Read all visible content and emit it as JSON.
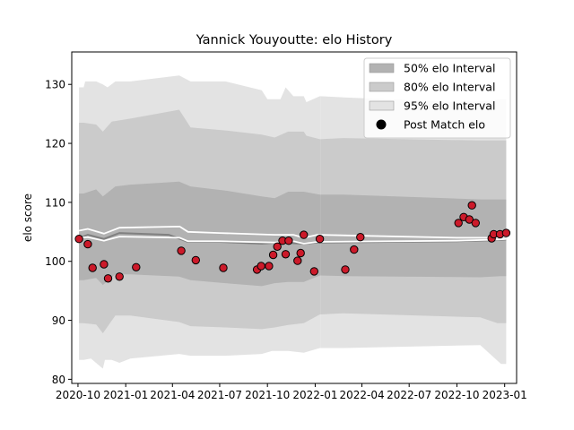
{
  "chart_data": {
    "type": "line",
    "title": "Yannick Youyoutte: elo History",
    "xlabel": "",
    "ylabel": "elo score",
    "xlim": [
      "2020-09-19",
      "2023-01-24"
    ],
    "ylim": [
      79.3,
      135.5
    ],
    "x_ticks": [
      "2020-10",
      "2021-01",
      "2021-04",
      "2021-07",
      "2021-10",
      "2022-01",
      "2022-04",
      "2022-07",
      "2022-10",
      "2023-01"
    ],
    "y_ticks": [
      80,
      90,
      100,
      110,
      120,
      130
    ],
    "grid": false,
    "legend_position": "top-right",
    "legend": [
      {
        "label": "50% elo Interval",
        "kind": "band",
        "color": "#b2b2b2"
      },
      {
        "label": "80% elo Interval",
        "kind": "band",
        "color": "#cbcbcb"
      },
      {
        "label": "95% elo Interval",
        "kind": "band",
        "color": "#e3e3e3"
      },
      {
        "label": "Post Match elo",
        "kind": "marker",
        "color": "#000000"
      }
    ],
    "bands": [
      {
        "name": "95% elo Interval",
        "color": "#e3e3e3",
        "upper": [
          [
            "2020-10-03",
            129.5
          ],
          [
            "2020-10-12",
            129.5
          ],
          [
            "2020-10-15",
            130.5
          ],
          [
            "2020-11-05",
            130.5
          ],
          [
            "2020-11-18",
            130.0
          ],
          [
            "2020-11-27",
            129.5
          ],
          [
            "2020-12-12",
            130.5
          ],
          [
            "2021-01-10",
            130.5
          ],
          [
            "2021-04-14",
            131.5
          ],
          [
            "2021-05-06",
            130.5
          ],
          [
            "2021-07-12",
            130.5
          ],
          [
            "2021-09-20",
            129.0
          ],
          [
            "2021-10-01",
            127.5
          ],
          [
            "2021-10-26",
            127.5
          ],
          [
            "2021-11-05",
            129.5
          ],
          [
            "2021-11-20",
            128.0
          ],
          [
            "2021-12-10",
            128.0
          ],
          [
            "2021-12-15",
            127.0
          ],
          [
            "2022-01-10",
            128.0
          ],
          [
            "2022-01-11",
            128.0
          ]
        ],
        "lower": [
          [
            "2020-10-03",
            83.3
          ],
          [
            "2020-10-12",
            83.3
          ],
          [
            "2020-10-26",
            83.5
          ],
          [
            "2020-11-18",
            81.8
          ],
          [
            "2020-11-22",
            83.3
          ],
          [
            "2020-12-05",
            83.3
          ],
          [
            "2020-12-20",
            82.8
          ],
          [
            "2021-01-10",
            83.5
          ],
          [
            "2021-04-14",
            84.3
          ],
          [
            "2021-05-06",
            84.0
          ],
          [
            "2021-07-12",
            84.0
          ],
          [
            "2021-09-20",
            84.3
          ],
          [
            "2021-10-10",
            84.8
          ],
          [
            "2021-11-10",
            84.8
          ],
          [
            "2021-12-10",
            84.5
          ],
          [
            "2022-01-10",
            85.3
          ],
          [
            "2022-01-11",
            85.3
          ]
        ]
      },
      {
        "name": "80% elo Interval",
        "color": "#cbcbcb",
        "upper": [
          [
            "2020-10-03",
            123.5
          ],
          [
            "2020-10-12",
            123.5
          ],
          [
            "2020-11-05",
            123.2
          ],
          [
            "2020-11-18",
            122.0
          ],
          [
            "2020-12-05",
            123.7
          ],
          [
            "2021-01-10",
            124.2
          ],
          [
            "2021-04-14",
            125.7
          ],
          [
            "2021-05-06",
            122.7
          ],
          [
            "2021-07-12",
            122.2
          ],
          [
            "2021-09-20",
            121.5
          ],
          [
            "2021-10-15",
            121.0
          ],
          [
            "2021-11-10",
            122.0
          ],
          [
            "2021-12-10",
            122.0
          ],
          [
            "2021-12-15",
            121.3
          ],
          [
            "2022-01-10",
            120.7
          ],
          [
            "2022-01-11",
            120.7
          ]
        ],
        "lower": [
          [
            "2020-10-03",
            89.5
          ],
          [
            "2020-10-12",
            89.5
          ],
          [
            "2020-11-05",
            89.3
          ],
          [
            "2020-11-18",
            87.8
          ],
          [
            "2020-12-12",
            90.8
          ],
          [
            "2021-01-10",
            90.8
          ],
          [
            "2021-04-14",
            89.7
          ],
          [
            "2021-05-06",
            89.0
          ],
          [
            "2021-07-12",
            88.8
          ],
          [
            "2021-09-20",
            88.5
          ],
          [
            "2021-10-15",
            88.8
          ],
          [
            "2021-11-10",
            89.2
          ],
          [
            "2021-12-10",
            89.5
          ],
          [
            "2022-01-10",
            91.0
          ],
          [
            "2022-01-11",
            91.0
          ]
        ]
      },
      {
        "name": "50% elo Interval",
        "color": "#b2b2b2",
        "upper": [
          [
            "2020-10-03",
            111.5
          ],
          [
            "2020-10-12",
            111.5
          ],
          [
            "2020-11-05",
            112.2
          ],
          [
            "2020-11-18",
            111.0
          ],
          [
            "2020-12-12",
            112.7
          ],
          [
            "2021-01-10",
            113.0
          ],
          [
            "2021-04-14",
            113.5
          ],
          [
            "2021-05-06",
            112.7
          ],
          [
            "2021-07-12",
            112.0
          ],
          [
            "2021-09-20",
            111.0
          ],
          [
            "2021-10-15",
            110.7
          ],
          [
            "2021-11-10",
            111.8
          ],
          [
            "2021-12-10",
            111.8
          ],
          [
            "2022-01-10",
            111.3
          ],
          [
            "2022-01-11",
            111.3
          ]
        ],
        "lower": [
          [
            "2020-10-03",
            96.8
          ],
          [
            "2020-10-12",
            96.8
          ],
          [
            "2020-11-05",
            97.2
          ],
          [
            "2020-11-18",
            96.0
          ],
          [
            "2020-12-12",
            97.8
          ],
          [
            "2021-01-10",
            97.8
          ],
          [
            "2021-04-14",
            97.4
          ],
          [
            "2021-05-06",
            96.8
          ],
          [
            "2021-07-12",
            96.3
          ],
          [
            "2021-09-20",
            95.8
          ],
          [
            "2021-10-15",
            96.3
          ],
          [
            "2021-11-10",
            96.5
          ],
          [
            "2021-12-10",
            96.5
          ],
          [
            "2022-01-10",
            97.6
          ],
          [
            "2022-01-11",
            97.6
          ]
        ]
      }
    ],
    "bands_future": [
      {
        "name": "95% elo Interval",
        "color": "#e3e3e3",
        "upper": [
          [
            "2022-01-11",
            128.0
          ],
          [
            "2022-02-25",
            127.8
          ],
          [
            "2022-10-05",
            127.0
          ],
          [
            "2022-12-01",
            127.2
          ],
          [
            "2022-12-25",
            127.5
          ],
          [
            "2023-01-04",
            127.5
          ]
        ],
        "lower": [
          [
            "2022-01-11",
            85.3
          ],
          [
            "2022-02-25",
            85.3
          ],
          [
            "2022-11-15",
            85.8
          ],
          [
            "2022-12-25",
            82.6
          ],
          [
            "2023-01-04",
            82.6
          ]
        ]
      },
      {
        "name": "80% elo Interval",
        "color": "#cbcbcb",
        "upper": [
          [
            "2022-01-11",
            120.7
          ],
          [
            "2022-02-25",
            120.9
          ],
          [
            "2022-11-15",
            120.5
          ],
          [
            "2022-12-25",
            120.5
          ],
          [
            "2023-01-04",
            120.5
          ]
        ],
        "lower": [
          [
            "2022-01-11",
            91.0
          ],
          [
            "2022-02-25",
            91.2
          ],
          [
            "2022-11-15",
            90.5
          ],
          [
            "2022-12-18",
            89.5
          ],
          [
            "2023-01-04",
            89.5
          ]
        ]
      },
      {
        "name": "50% elo Interval",
        "color": "#b2b2b2",
        "upper": [
          [
            "2022-01-11",
            111.3
          ],
          [
            "2022-02-25",
            111.3
          ],
          [
            "2022-11-15",
            110.5
          ],
          [
            "2022-12-25",
            110.5
          ],
          [
            "2023-01-04",
            110.5
          ]
        ],
        "lower": [
          [
            "2022-01-11",
            97.6
          ],
          [
            "2022-02-25",
            97.5
          ],
          [
            "2022-11-15",
            97.3
          ],
          [
            "2022-12-25",
            97.5
          ],
          [
            "2023-01-04",
            97.5
          ]
        ]
      }
    ],
    "series": [
      {
        "kind": "mean",
        "color": "#808080",
        "points": [
          [
            "2020-10-03",
            103.9
          ],
          [
            "2020-10-20",
            104.5
          ],
          [
            "2020-11-20",
            103.8
          ],
          [
            "2020-12-20",
            104.8
          ],
          [
            "2021-03-25",
            104.5
          ],
          [
            "2021-05-01",
            103.3
          ],
          [
            "2021-07-01",
            103.3
          ],
          [
            "2021-09-20",
            103.0
          ],
          [
            "2021-10-20",
            103.2
          ],
          [
            "2021-12-10",
            103.0
          ],
          [
            "2022-01-05",
            103.2
          ],
          [
            "2022-10-01",
            103.4
          ],
          [
            "2022-12-20",
            103.6
          ],
          [
            "2023-01-04",
            103.7
          ]
        ]
      },
      {
        "kind": "mean-upper",
        "color": "#ffffff",
        "points": [
          [
            "2020-10-03",
            105.2
          ],
          [
            "2020-10-20",
            105.5
          ],
          [
            "2020-11-20",
            104.7
          ],
          [
            "2020-12-20",
            105.7
          ],
          [
            "2021-04-15",
            105.9
          ],
          [
            "2021-05-01",
            105.0
          ],
          [
            "2021-07-01",
            104.8
          ],
          [
            "2021-10-15",
            104.5
          ],
          [
            "2021-11-20",
            104.5
          ],
          [
            "2021-12-10",
            104.0
          ],
          [
            "2022-01-05",
            104.5
          ],
          [
            "2022-10-01",
            104.0
          ],
          [
            "2022-12-20",
            104.0
          ],
          [
            "2023-01-04",
            104.2
          ]
        ]
      },
      {
        "kind": "mean-lower",
        "color": "#ffffff",
        "points": [
          [
            "2020-10-03",
            104.0
          ],
          [
            "2020-10-20",
            104.1
          ],
          [
            "2020-11-20",
            103.5
          ],
          [
            "2020-12-20",
            104.2
          ],
          [
            "2021-04-15",
            104.0
          ],
          [
            "2021-05-01",
            103.4
          ],
          [
            "2021-07-01",
            103.4
          ],
          [
            "2021-10-15",
            103.2
          ],
          [
            "2021-11-20",
            103.4
          ],
          [
            "2021-12-10",
            103.0
          ],
          [
            "2022-01-05",
            103.3
          ],
          [
            "2022-10-01",
            103.5
          ],
          [
            "2022-12-20",
            103.7
          ],
          [
            "2023-01-04",
            103.8
          ]
        ]
      }
    ],
    "post_match_elo": {
      "name": "Post Match elo",
      "color": "#cc1a2a",
      "points": [
        [
          "2020-10-03",
          103.8
        ],
        [
          "2020-10-20",
          102.9
        ],
        [
          "2020-10-29",
          98.9
        ],
        [
          "2020-11-20",
          99.5
        ],
        [
          "2020-11-28",
          97.1
        ],
        [
          "2020-12-20",
          97.4
        ],
        [
          "2021-01-21",
          99.0
        ],
        [
          "2021-04-18",
          101.8
        ],
        [
          "2021-05-16",
          100.2
        ],
        [
          "2021-07-08",
          98.9
        ],
        [
          "2021-09-11",
          98.6
        ],
        [
          "2021-09-19",
          99.2
        ],
        [
          "2021-10-04",
          99.2
        ],
        [
          "2021-10-12",
          101.1
        ],
        [
          "2021-10-20",
          102.5
        ],
        [
          "2021-10-30",
          103.5
        ],
        [
          "2021-11-05",
          101.2
        ],
        [
          "2021-11-11",
          103.5
        ],
        [
          "2021-11-28",
          100.1
        ],
        [
          "2021-12-04",
          101.4
        ],
        [
          "2021-12-10",
          104.5
        ],
        [
          "2021-12-30",
          98.3
        ],
        [
          "2022-01-10",
          103.8
        ],
        [
          "2022-02-28",
          98.6
        ],
        [
          "2022-03-17",
          102.0
        ],
        [
          "2022-03-29",
          104.1
        ],
        [
          "2022-10-04",
          106.5
        ],
        [
          "2022-10-14",
          107.5
        ],
        [
          "2022-10-25",
          107.1
        ],
        [
          "2022-10-30",
          109.5
        ],
        [
          "2022-11-06",
          106.5
        ],
        [
          "2022-12-07",
          103.9
        ],
        [
          "2022-12-11",
          104.6
        ],
        [
          "2022-12-23",
          104.6
        ],
        [
          "2023-01-04",
          104.8
        ]
      ]
    }
  }
}
